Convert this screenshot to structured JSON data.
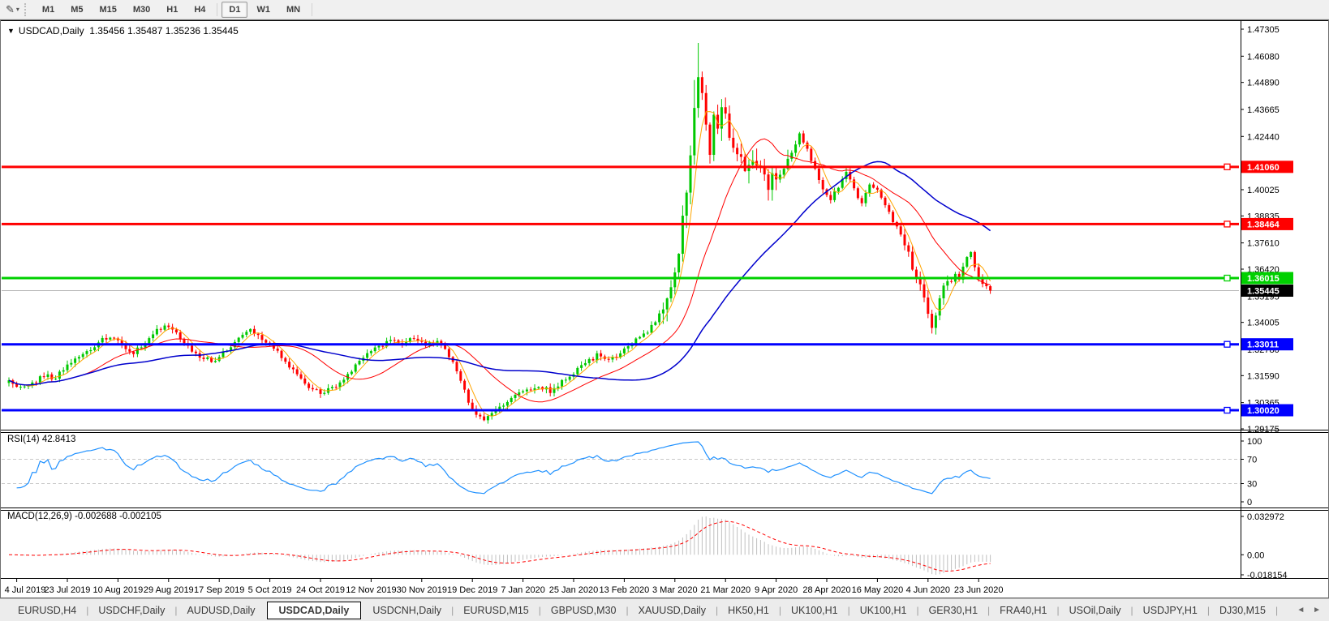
{
  "toolbar": {
    "timeframes": [
      "M1",
      "M5",
      "M15",
      "M30",
      "H1",
      "H4",
      "D1",
      "W1",
      "MN"
    ],
    "active_timeframe": "D1",
    "tool_icon_caret": "▾",
    "tool_icon_glyph": "✎"
  },
  "chart_title": {
    "arrow": "▼",
    "symbol": "USDCAD,Daily",
    "ohlc": "1.35456 1.35487 1.35236 1.35445"
  },
  "rsi_label": "RSI(14) 42.8413",
  "macd_label": "MACD(12,26,9) -0.002688 -0.002105",
  "tabs": {
    "items": [
      "EURUSD,H4",
      "USDCHF,Daily",
      "AUDUSD,Daily",
      "USDCAD,Daily",
      "USDCNH,Daily",
      "EURUSD,M15",
      "GBPUSD,M30",
      "XAUUSD,Daily",
      "HK50,H1",
      "UK100,H1",
      "UK100,H1",
      "GER30,H1",
      "FRA40,H1",
      "USOil,Daily",
      "USDJPY,H1",
      "DJ30,M15"
    ],
    "active": "USDCAD,Daily",
    "nav_left": "◄",
    "nav_right": "►"
  },
  "chart_data": {
    "type": "candlestick",
    "symbol": "USDCAD",
    "timeframe": "Daily",
    "ohlc_display": {
      "open": "1.35456",
      "high": "1.35487",
      "low": "1.35236",
      "close": "1.35445"
    },
    "price_axis": {
      "max": 1.47305,
      "min": 1.29175,
      "tick_labels": [
        "1.47305",
        "1.46080",
        "1.44890",
        "1.43665",
        "1.42440",
        "1.40025",
        "1.38835",
        "1.37610",
        "1.36420",
        "1.35195",
        "1.34005",
        "1.32780",
        "1.31590",
        "1.30365",
        "1.29175"
      ]
    },
    "x_axis": {
      "date_labels": [
        "4 Jul 2019",
        "23 Jul 2019",
        "10 Aug 2019",
        "29 Aug 2019",
        "17 Sep 2019",
        "5 Oct 2019",
        "24 Oct 2019",
        "12 Nov 2019",
        "30 Nov 2019",
        "19 Dec 2019",
        "7 Jan 2020",
        "25 Jan 2020",
        "13 Feb 2020",
        "3 Mar 2020",
        "21 Mar 2020",
        "9 Apr 2020",
        "28 Apr 2020",
        "16 May 2020",
        "4 Jun 2020",
        "23 Jun 2020"
      ]
    },
    "horizontal_lines": [
      {
        "price": 1.4106,
        "label": "1.41060",
        "color": "#FF0000"
      },
      {
        "price": 1.38464,
        "label": "1.38464",
        "color": "#FF0000"
      },
      {
        "price": 1.36015,
        "label": "1.36015",
        "color": "#00D000"
      },
      {
        "price": 1.33011,
        "label": "1.33011",
        "color": "#0000FF"
      },
      {
        "price": 1.3002,
        "label": "1.30020",
        "color": "#0000FF"
      }
    ],
    "current_price": {
      "value": 1.35445,
      "label": "1.35445"
    },
    "candles": {
      "count": 253,
      "seed": 9,
      "base_noise": 0.0011,
      "noise_zones": [
        {
          "from": 168,
          "to": 200,
          "amp": 0.0038
        },
        {
          "from": 230,
          "to": 242,
          "amp": 0.0022
        }
      ],
      "wick_overrides": [
        {
          "i": 177,
          "high": 1.4668
        },
        {
          "i": 176,
          "high": 1.45
        },
        {
          "i": 237,
          "low": 1.335
        }
      ],
      "close_anchors": [
        [
          0,
          1.3135
        ],
        [
          3,
          1.3105
        ],
        [
          6,
          1.3125
        ],
        [
          9,
          1.316
        ],
        [
          12,
          1.315
        ],
        [
          14,
          1.319
        ],
        [
          17,
          1.323
        ],
        [
          20,
          1.327
        ],
        [
          23,
          1.331
        ],
        [
          26,
          1.334
        ],
        [
          29,
          1.33
        ],
        [
          32,
          1.326
        ],
        [
          35,
          1.331
        ],
        [
          38,
          1.336
        ],
        [
          41,
          1.3385
        ],
        [
          44,
          1.333
        ],
        [
          47,
          1.327
        ],
        [
          50,
          1.324
        ],
        [
          53,
          1.322
        ],
        [
          56,
          1.328
        ],
        [
          59,
          1.333
        ],
        [
          62,
          1.336
        ],
        [
          65,
          1.332
        ],
        [
          68,
          1.3285
        ],
        [
          71,
          1.322
        ],
        [
          74,
          1.316
        ],
        [
          77,
          1.311
        ],
        [
          80,
          1.3075
        ],
        [
          83,
          1.31
        ],
        [
          86,
          1.315
        ],
        [
          89,
          1.32
        ],
        [
          92,
          1.325
        ],
        [
          95,
          1.329
        ],
        [
          98,
          1.332
        ],
        [
          101,
          1.3305
        ],
        [
          104,
          1.333
        ],
        [
          107,
          1.329
        ],
        [
          110,
          1.332
        ],
        [
          112,
          1.328
        ],
        [
          114,
          1.322
        ],
        [
          116,
          1.313
        ],
        [
          118,
          1.304
        ],
        [
          120,
          1.298
        ],
        [
          122,
          1.296
        ],
        [
          124,
          1.2985
        ],
        [
          127,
          1.303
        ],
        [
          130,
          1.3065
        ],
        [
          133,
          1.3095
        ],
        [
          136,
          1.3115
        ],
        [
          139,
          1.309
        ],
        [
          142,
          1.313
        ],
        [
          145,
          1.3175
        ],
        [
          148,
          1.3215
        ],
        [
          151,
          1.325
        ],
        [
          154,
          1.3235
        ],
        [
          157,
          1.326
        ],
        [
          160,
          1.3305
        ],
        [
          163,
          1.334
        ],
        [
          166,
          1.3405
        ],
        [
          168,
          1.3465
        ],
        [
          170,
          1.355
        ],
        [
          171,
          1.363
        ],
        [
          172,
          1.374
        ],
        [
          173,
          1.387
        ],
        [
          174,
          1.401
        ],
        [
          175,
          1.416
        ],
        [
          176,
          1.435
        ],
        [
          177,
          1.452
        ],
        [
          178,
          1.443
        ],
        [
          179,
          1.426
        ],
        [
          180,
          1.414
        ],
        [
          181,
          1.435
        ],
        [
          182,
          1.427
        ],
        [
          183,
          1.44
        ],
        [
          184,
          1.433
        ],
        [
          185,
          1.425
        ],
        [
          187,
          1.416
        ],
        [
          189,
          1.409
        ],
        [
          191,
          1.417
        ],
        [
          193,
          1.407
        ],
        [
          195,
          1.402
        ],
        [
          197,
          1.406
        ],
        [
          199,
          1.41
        ],
        [
          201,
          1.417
        ],
        [
          203,
          1.425
        ],
        [
          205,
          1.418
        ],
        [
          207,
          1.409
        ],
        [
          209,
          1.401
        ],
        [
          211,
          1.396
        ],
        [
          213,
          1.402
        ],
        [
          215,
          1.408
        ],
        [
          217,
          1.4
        ],
        [
          219,
          1.394
        ],
        [
          221,
          1.403
        ],
        [
          223,
          1.4
        ],
        [
          225,
          1.393
        ],
        [
          227,
          1.386
        ],
        [
          229,
          1.379
        ],
        [
          231,
          1.37
        ],
        [
          233,
          1.361
        ],
        [
          235,
          1.35
        ],
        [
          236,
          1.342
        ],
        [
          237,
          1.338
        ],
        [
          238,
          1.345
        ],
        [
          239,
          1.35
        ],
        [
          240,
          1.356
        ],
        [
          241,
          1.36
        ],
        [
          242,
          1.3565
        ],
        [
          243,
          1.3615
        ],
        [
          244,
          1.3585
        ],
        [
          245,
          1.365
        ],
        [
          246,
          1.3695
        ],
        [
          247,
          1.372
        ],
        [
          248,
          1.3655
        ],
        [
          249,
          1.3605
        ],
        [
          250,
          1.3575
        ],
        [
          251,
          1.356
        ],
        [
          252,
          1.35445
        ]
      ]
    },
    "moving_averages": [
      {
        "period": 5,
        "color": "#FFA500"
      },
      {
        "period": 20,
        "color": "#FF0000"
      },
      {
        "period": 50,
        "color": "#0000CD"
      }
    ],
    "rsi": {
      "period": 14,
      "current": 42.8413,
      "dashed_levels": [
        70,
        30
      ],
      "scale_labels": [
        "100",
        "70",
        "30",
        "0"
      ],
      "color": "#1E90FF"
    },
    "macd": {
      "fast": 12,
      "slow": 26,
      "signal": 9,
      "values": [
        -0.002688,
        -0.002105
      ],
      "scale_labels": [
        "0.032972",
        "0.00",
        "-0.018154"
      ],
      "hist_color": "#C0C0C0",
      "signal_color": "#FF0000"
    },
    "colors": {
      "bull": "#00C800",
      "bear": "#FF0000",
      "background": "#FFFFFF",
      "current_line": "#B4B4B4"
    }
  }
}
